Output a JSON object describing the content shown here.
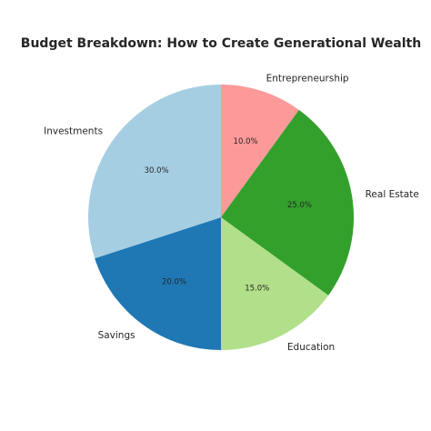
{
  "chart_data": {
    "type": "pie",
    "title": "Budget Breakdown: How to Create Generational Wealth",
    "start_angle_deg": 90,
    "direction": "clockwise",
    "slices": [
      {
        "label": "Entrepreneurship",
        "value": 10.0,
        "pct_label": "10.0%",
        "color": "#fb9a99"
      },
      {
        "label": "Real Estate",
        "value": 25.0,
        "pct_label": "25.0%",
        "color": "#33a02c"
      },
      {
        "label": "Education",
        "value": 15.0,
        "pct_label": "15.0%",
        "color": "#b2df8a"
      },
      {
        "label": "Savings",
        "value": 20.0,
        "pct_label": "20.0%",
        "color": "#1f78b4"
      },
      {
        "label": "Investments",
        "value": 30.0,
        "pct_label": "30.0%",
        "color": "#a6cee3"
      }
    ]
  }
}
